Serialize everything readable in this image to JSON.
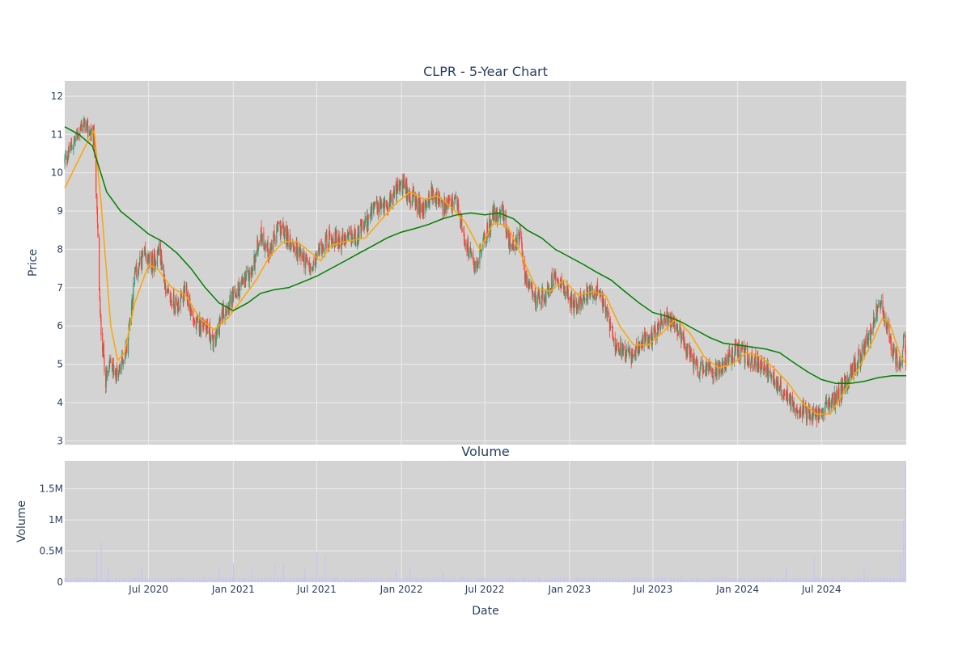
{
  "chart_data": [
    {
      "type": "candlestick",
      "title": "CLPR - 5-Year Chart",
      "ylabel": "Price",
      "ylim": [
        2.9,
        12.4
      ],
      "yticks": [
        3,
        4,
        5,
        6,
        7,
        8,
        9,
        10,
        11,
        12
      ],
      "grid": true,
      "legend": "none",
      "overlays": [
        {
          "label": "short moving average",
          "color": "#ffa500"
        },
        {
          "label": "long moving average",
          "color": "#008000"
        }
      ],
      "candle_colors": {
        "up": "#3d9970",
        "down": "#ff4136"
      },
      "close_path": [
        [
          "2020-01-01",
          10.3
        ],
        [
          "2020-01-20",
          10.8
        ],
        [
          "2020-02-10",
          11.3
        ],
        [
          "2020-03-05",
          10.9
        ],
        [
          "2020-03-12",
          8.6
        ],
        [
          "2020-03-18",
          6.2
        ],
        [
          "2020-03-30",
          4.6
        ],
        [
          "2020-04-10",
          5.0
        ],
        [
          "2020-04-25",
          4.7
        ],
        [
          "2020-05-05",
          5.1
        ],
        [
          "2020-05-15",
          5.5
        ],
        [
          "2020-06-01",
          7.3
        ],
        [
          "2020-06-20",
          7.8
        ],
        [
          "2020-07-10",
          7.6
        ],
        [
          "2020-07-25",
          8.0
        ],
        [
          "2020-08-10",
          6.8
        ],
        [
          "2020-09-01",
          6.5
        ],
        [
          "2020-09-20",
          6.9
        ],
        [
          "2020-10-10",
          6.0
        ],
        [
          "2020-11-01",
          6.1
        ],
        [
          "2020-11-20",
          5.5
        ],
        [
          "2020-12-10",
          6.4
        ],
        [
          "2021-01-01",
          6.7
        ],
        [
          "2021-01-15",
          7.0
        ],
        [
          "2021-02-10",
          7.4
        ],
        [
          "2021-03-01",
          8.4
        ],
        [
          "2021-03-20",
          7.9
        ],
        [
          "2021-04-10",
          8.6
        ],
        [
          "2021-05-10",
          8.1
        ],
        [
          "2021-06-01",
          7.8
        ],
        [
          "2021-06-20",
          7.4
        ],
        [
          "2021-07-10",
          8.1
        ],
        [
          "2021-08-01",
          8.3
        ],
        [
          "2021-09-01",
          8.2
        ],
        [
          "2021-10-01",
          8.4
        ],
        [
          "2021-11-01",
          9.0
        ],
        [
          "2021-12-01",
          9.2
        ],
        [
          "2022-01-01",
          9.7
        ],
        [
          "2022-01-20",
          9.4
        ],
        [
          "2022-02-15",
          9.0
        ],
        [
          "2022-03-10",
          9.5
        ],
        [
          "2022-04-01",
          9.1
        ],
        [
          "2022-05-01",
          9.2
        ],
        [
          "2022-05-20",
          8.2
        ],
        [
          "2022-06-10",
          7.5
        ],
        [
          "2022-07-01",
          8.3
        ],
        [
          "2022-07-20",
          8.9
        ],
        [
          "2022-08-10",
          9.0
        ],
        [
          "2022-08-25",
          8.0
        ],
        [
          "2022-09-15",
          8.3
        ],
        [
          "2022-10-01",
          7.0
        ],
        [
          "2022-10-20",
          6.7
        ],
        [
          "2022-11-10",
          6.8
        ],
        [
          "2022-12-01",
          7.4
        ],
        [
          "2022-12-20",
          7.0
        ],
        [
          "2023-01-10",
          6.5
        ],
        [
          "2023-02-01",
          6.8
        ],
        [
          "2023-03-01",
          6.9
        ],
        [
          "2023-03-20",
          6.4
        ],
        [
          "2023-04-10",
          5.6
        ],
        [
          "2023-05-01",
          5.3
        ],
        [
          "2023-05-20",
          5.2
        ],
        [
          "2023-06-10",
          5.6
        ],
        [
          "2023-07-01",
          5.7
        ],
        [
          "2023-07-20",
          6.2
        ],
        [
          "2023-08-10",
          6.1
        ],
        [
          "2023-09-01",
          5.7
        ],
        [
          "2023-10-01",
          4.9
        ],
        [
          "2023-11-01",
          4.8
        ],
        [
          "2023-12-01",
          5.0
        ],
        [
          "2024-01-01",
          5.4
        ],
        [
          "2024-02-01",
          5.1
        ],
        [
          "2024-03-01",
          4.9
        ],
        [
          "2024-04-01",
          4.4
        ],
        [
          "2024-05-01",
          4.0
        ],
        [
          "2024-06-01",
          3.7
        ],
        [
          "2024-06-20",
          3.6
        ],
        [
          "2024-07-10",
          3.9
        ],
        [
          "2024-08-01",
          4.1
        ],
        [
          "2024-08-20",
          4.5
        ],
        [
          "2024-09-10",
          4.9
        ],
        [
          "2024-10-01",
          5.4
        ],
        [
          "2024-10-20",
          6.0
        ],
        [
          "2024-11-01",
          6.6
        ],
        [
          "2024-11-15",
          6.3
        ],
        [
          "2024-12-01",
          5.4
        ],
        [
          "2024-12-20",
          4.8
        ],
        [
          "2024-12-27",
          5.9
        ],
        [
          "2025-01-01",
          4.9
        ]
      ],
      "ma_short": [
        [
          "2020-01-01",
          9.6
        ],
        [
          "2020-02-15",
          10.7
        ],
        [
          "2020-03-05",
          11.1
        ],
        [
          "2020-03-20",
          9.2
        ],
        [
          "2020-04-10",
          6.0
        ],
        [
          "2020-04-25",
          5.1
        ],
        [
          "2020-05-10",
          5.3
        ],
        [
          "2020-06-01",
          6.6
        ],
        [
          "2020-07-01",
          7.6
        ],
        [
          "2020-07-20",
          7.5
        ],
        [
          "2020-08-20",
          7.0
        ],
        [
          "2020-09-20",
          6.8
        ],
        [
          "2020-10-20",
          6.2
        ],
        [
          "2020-11-20",
          5.9
        ],
        [
          "2020-12-20",
          6.2
        ],
        [
          "2021-01-20",
          6.7
        ],
        [
          "2021-02-20",
          7.2
        ],
        [
          "2021-03-20",
          7.8
        ],
        [
          "2021-04-20",
          8.2
        ],
        [
          "2021-05-20",
          8.2
        ],
        [
          "2021-06-20",
          7.9
        ],
        [
          "2021-07-10",
          7.7
        ],
        [
          "2021-08-01",
          8.1
        ],
        [
          "2021-09-01",
          8.2
        ],
        [
          "2021-10-15",
          8.3
        ],
        [
          "2021-11-20",
          8.8
        ],
        [
          "2021-12-20",
          9.2
        ],
        [
          "2022-01-20",
          9.5
        ],
        [
          "2022-02-20",
          9.3
        ],
        [
          "2022-03-20",
          9.4
        ],
        [
          "2022-04-20",
          9.1
        ],
        [
          "2022-05-20",
          8.7
        ],
        [
          "2022-06-20",
          8.0
        ],
        [
          "2022-07-20",
          8.7
        ],
        [
          "2022-08-20",
          8.6
        ],
        [
          "2022-09-20",
          7.8
        ],
        [
          "2022-10-20",
          7.0
        ],
        [
          "2022-11-20",
          6.9
        ],
        [
          "2022-12-20",
          7.2
        ],
        [
          "2023-01-20",
          6.8
        ],
        [
          "2023-02-20",
          6.9
        ],
        [
          "2023-03-20",
          6.8
        ],
        [
          "2023-04-20",
          6.0
        ],
        [
          "2023-05-20",
          5.5
        ],
        [
          "2023-06-20",
          5.5
        ],
        [
          "2023-07-20",
          5.8
        ],
        [
          "2023-08-20",
          6.2
        ],
        [
          "2023-09-20",
          5.8
        ],
        [
          "2023-10-20",
          5.2
        ],
        [
          "2023-11-20",
          4.9
        ],
        [
          "2023-12-20",
          5.0
        ],
        [
          "2024-01-20",
          5.3
        ],
        [
          "2024-02-20",
          5.2
        ],
        [
          "2024-03-20",
          4.9
        ],
        [
          "2024-04-20",
          4.5
        ],
        [
          "2024-05-20",
          4.0
        ],
        [
          "2024-06-20",
          3.7
        ],
        [
          "2024-07-20",
          3.7
        ],
        [
          "2024-08-20",
          4.3
        ],
        [
          "2024-09-20",
          4.9
        ],
        [
          "2024-10-20",
          5.6
        ],
        [
          "2024-11-10",
          6.2
        ],
        [
          "2024-11-25",
          6.1
        ],
        [
          "2024-12-20",
          5.2
        ],
        [
          "2025-01-01",
          5.0
        ]
      ],
      "ma_long": [
        [
          "2020-01-01",
          11.2
        ],
        [
          "2020-02-01",
          11.0
        ],
        [
          "2020-03-01",
          10.7
        ],
        [
          "2020-04-01",
          9.5
        ],
        [
          "2020-05-01",
          9.0
        ],
        [
          "2020-06-01",
          8.7
        ],
        [
          "2020-07-01",
          8.4
        ],
        [
          "2020-08-01",
          8.2
        ],
        [
          "2020-09-01",
          7.9
        ],
        [
          "2020-10-01",
          7.5
        ],
        [
          "2020-11-01",
          7.0
        ],
        [
          "2020-12-01",
          6.6
        ],
        [
          "2021-01-01",
          6.4
        ],
        [
          "2021-02-01",
          6.6
        ],
        [
          "2021-03-01",
          6.85
        ],
        [
          "2021-04-01",
          6.95
        ],
        [
          "2021-05-01",
          7.0
        ],
        [
          "2021-06-01",
          7.15
        ],
        [
          "2021-07-01",
          7.3
        ],
        [
          "2021-08-01",
          7.5
        ],
        [
          "2021-09-01",
          7.7
        ],
        [
          "2021-10-01",
          7.9
        ],
        [
          "2021-11-01",
          8.1
        ],
        [
          "2021-12-01",
          8.3
        ],
        [
          "2022-01-01",
          8.45
        ],
        [
          "2022-02-01",
          8.55
        ],
        [
          "2022-03-01",
          8.65
        ],
        [
          "2022-04-01",
          8.8
        ],
        [
          "2022-05-01",
          8.9
        ],
        [
          "2022-06-01",
          8.95
        ],
        [
          "2022-07-01",
          8.9
        ],
        [
          "2022-08-01",
          8.95
        ],
        [
          "2022-09-01",
          8.8
        ],
        [
          "2022-10-01",
          8.5
        ],
        [
          "2022-11-01",
          8.3
        ],
        [
          "2022-12-01",
          8.0
        ],
        [
          "2023-01-01",
          7.8
        ],
        [
          "2023-02-01",
          7.6
        ],
        [
          "2023-03-01",
          7.4
        ],
        [
          "2023-04-01",
          7.2
        ],
        [
          "2023-05-01",
          6.9
        ],
        [
          "2023-06-01",
          6.6
        ],
        [
          "2023-07-01",
          6.35
        ],
        [
          "2023-08-01",
          6.25
        ],
        [
          "2023-09-01",
          6.1
        ],
        [
          "2023-10-01",
          5.9
        ],
        [
          "2023-11-01",
          5.7
        ],
        [
          "2023-12-01",
          5.55
        ],
        [
          "2024-01-01",
          5.5
        ],
        [
          "2024-02-01",
          5.45
        ],
        [
          "2024-03-01",
          5.4
        ],
        [
          "2024-04-01",
          5.3
        ],
        [
          "2024-05-01",
          5.05
        ],
        [
          "2024-06-01",
          4.8
        ],
        [
          "2024-07-01",
          4.6
        ],
        [
          "2024-08-01",
          4.5
        ],
        [
          "2024-09-01",
          4.5
        ],
        [
          "2024-10-01",
          4.55
        ],
        [
          "2024-11-01",
          4.65
        ],
        [
          "2024-12-01",
          4.7
        ],
        [
          "2025-01-01",
          4.7
        ]
      ]
    },
    {
      "type": "bar",
      "title": "Volume",
      "ylabel": "Volume",
      "xlabel": "Date",
      "ylim": [
        0,
        1950000
      ],
      "yticks": [
        0,
        500000,
        1000000,
        1500000
      ],
      "ytick_labels": [
        "0",
        "0.5M",
        "1M",
        "1.5M"
      ],
      "grid": true,
      "bar_color": "#c6c6ef",
      "spikes": [
        [
          "2020-03-10",
          480000
        ],
        [
          "2020-03-20",
          640000
        ],
        [
          "2020-04-05",
          220000
        ],
        [
          "2020-06-15",
          250000
        ],
        [
          "2020-12-01",
          240000
        ],
        [
          "2021-01-01",
          300000
        ],
        [
          "2021-02-10",
          220000
        ],
        [
          "2021-04-01",
          280000
        ],
        [
          "2021-04-20",
          300000
        ],
        [
          "2021-06-05",
          220000
        ],
        [
          "2021-07-01",
          480000
        ],
        [
          "2021-07-20",
          420000
        ],
        [
          "2021-12-20",
          200000
        ],
        [
          "2022-01-20",
          220000
        ],
        [
          "2022-04-01",
          170000
        ],
        [
          "2024-04-15",
          240000
        ],
        [
          "2024-06-15",
          400000
        ],
        [
          "2024-10-01",
          260000
        ],
        [
          "2024-12-20",
          450000
        ],
        [
          "2024-12-26",
          1000000
        ],
        [
          "2024-12-30",
          1870000
        ]
      ]
    }
  ],
  "xticks": [
    "Jul 2020",
    "Jan 2021",
    "Jul 2021",
    "Jan 2022",
    "Jul 2022",
    "Jan 2023",
    "Jul 2023",
    "Jan 2024",
    "Jul 2024"
  ],
  "xtick_dates": [
    "2020-07-01",
    "2021-01-01",
    "2021-07-01",
    "2022-01-01",
    "2022-07-01",
    "2023-01-01",
    "2023-07-01",
    "2024-01-01",
    "2024-07-01"
  ],
  "xrange": [
    "2020-01-01",
    "2025-01-01"
  ],
  "colors": {
    "plot_bg": "#d3d3d3",
    "grid": "#ececec",
    "text": "#2a3f5f"
  }
}
